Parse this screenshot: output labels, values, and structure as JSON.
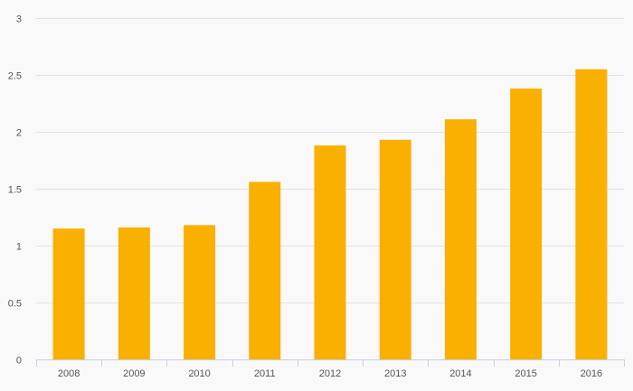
{
  "chart_data": {
    "type": "bar",
    "title": "",
    "xlabel": "",
    "ylabel": "",
    "categories": [
      "2008",
      "2009",
      "2010",
      "2011",
      "2012",
      "2013",
      "2014",
      "2015",
      "2016"
    ],
    "values": [
      1.15,
      1.16,
      1.18,
      1.56,
      1.88,
      1.93,
      2.11,
      2.38,
      2.55
    ],
    "ylim": [
      0,
      3
    ],
    "yticks": [
      "0",
      "0.5",
      "1",
      "1.5",
      "2",
      "2.5",
      "3"
    ],
    "grid": true,
    "legend": "none",
    "colors": {
      "bar": "#f9b000",
      "grid": "#e3e3e3",
      "axis": "#c9d0e0",
      "text": "#555555",
      "background": "#f9f9f9"
    }
  }
}
